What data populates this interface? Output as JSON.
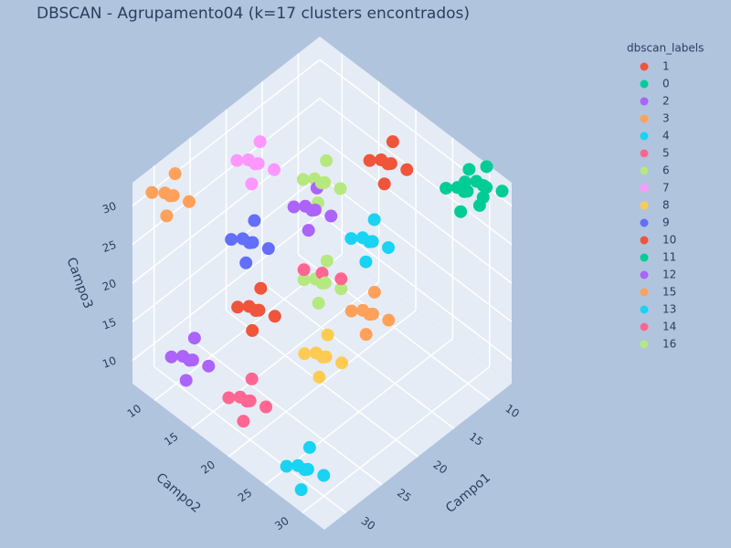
{
  "chart_data": {
    "type": "scatter3d",
    "title": "DBSCAN - Agrupamento04 (k=17 clusters encontrados)",
    "legend_title": "dbscan_labels",
    "x_label": "Campo1",
    "y_label": "Campo2",
    "z_label": "Campo3",
    "xlim": [
      7,
      33
    ],
    "ylim": [
      7,
      33
    ],
    "zlim": [
      7,
      33
    ],
    "xticks": [
      10,
      15,
      20,
      25,
      30
    ],
    "yticks": [
      10,
      15,
      20,
      25,
      30
    ],
    "zticks": [
      10,
      15,
      20,
      25,
      30
    ],
    "grid": true,
    "legend_position": "right",
    "series": [
      {
        "name": "1",
        "color": "#EF553B",
        "x": [
          12.2,
          13.7,
          11.0,
          13.0,
          10.7,
          13.2,
          11.6
        ],
        "y": [
          21.3,
          20.3,
          22.7,
          22.5,
          20.5,
          21.8,
          19.8
        ],
        "z": [
          30.7,
          31.5,
          30.1,
          32.2,
          31.9,
          29.2,
          29.7
        ]
      },
      {
        "name": "0",
        "color": "#00CC96",
        "x": [
          8.3,
          9.8,
          7.1,
          9.1,
          7.0,
          9.3,
          7.7
        ],
        "y": [
          30.4,
          29.4,
          31.8,
          31.6,
          29.6,
          30.9,
          28.9
        ],
        "z": [
          31.7,
          32.5,
          31.1,
          32.9,
          32.6,
          30.2,
          30.7
        ]
      },
      {
        "name": "2",
        "color": "#AB63FA",
        "x": [
          30.4,
          31.9,
          29.2,
          31.2,
          28.9,
          31.4,
          29.8
        ],
        "y": [
          12.2,
          11.2,
          13.6,
          13.4,
          11.4,
          12.7,
          10.7
        ],
        "z": [
          11.9,
          12.7,
          11.3,
          13.4,
          13.1,
          10.4,
          10.9
        ]
      },
      {
        "name": "3",
        "color": "#FFA15A",
        "x": [
          17.4,
          18.9,
          16.2,
          18.2,
          15.9,
          18.4,
          16.8
        ],
        "y": [
          23.9,
          22.9,
          25.3,
          25.1,
          23.1,
          24.4,
          22.4
        ],
        "z": [
          16.9,
          17.7,
          16.3,
          18.4,
          18.1,
          15.4,
          15.9
        ]
      },
      {
        "name": "4",
        "color": "#19D3F3",
        "x": [
          30.4,
          31.9,
          29.2,
          31.2,
          28.9,
          31.4,
          29.8
        ],
        "y": [
          27.8,
          26.8,
          29.2,
          29.0,
          27.0,
          28.3,
          26.3
        ],
        "z": [
          9.1,
          9.9,
          8.5,
          10.6,
          10.3,
          7.6,
          8.1
        ]
      },
      {
        "name": "5",
        "color": "#FF6692",
        "x": [
          20.0,
          21.5,
          18.8
        ],
        "y": [
          20.0,
          19.0,
          21.4
        ],
        "z": [
          21.3,
          22.1,
          20.7
        ]
      },
      {
        "name": "6",
        "color": "#B6E880",
        "x": [
          16.1,
          17.6,
          14.9,
          16.9,
          14.6,
          17.1,
          15.5
        ],
        "y": [
          16.1,
          15.1,
          17.5,
          17.3,
          15.3,
          16.6,
          14.6
        ],
        "z": [
          27.3,
          28.1,
          26.7,
          28.8,
          28.5,
          25.8,
          26.3
        ]
      },
      {
        "name": "7",
        "color": "#FF97FF",
        "x": [
          21.3,
          22.8,
          20.1,
          22.1,
          19.8,
          22.3,
          20.7
        ],
        "y": [
          12.2,
          11.2,
          13.6,
          13.4,
          11.4,
          12.7,
          10.7
        ],
        "z": [
          30.7,
          31.5,
          30.1,
          32.2,
          31.9,
          29.2,
          29.7
        ]
      },
      {
        "name": "8",
        "color": "#FECB52",
        "x": [
          23.9,
          25.4,
          22.7,
          24.7,
          22.4,
          24.9,
          23.3
        ],
        "y": [
          23.9,
          22.9,
          25.3,
          25.1,
          23.1,
          24.4,
          22.4
        ],
        "z": [
          16.1,
          16.9,
          15.5,
          17.6,
          17.3,
          14.6,
          15.1
        ]
      },
      {
        "name": "9",
        "color": "#636EFA",
        "x": [
          22.6,
          24.1,
          21.4,
          23.4,
          21.1,
          23.6,
          22.0
        ],
        "y": [
          12.7,
          11.7,
          14.1,
          13.9,
          11.9,
          13.2,
          11.2
        ],
        "z": [
          21.8,
          22.6,
          21.2,
          23.3,
          23.0,
          20.3,
          20.8
        ]
      },
      {
        "name": "10",
        "color": "#EF553B",
        "x": [
          25.2,
          26.7,
          24.0,
          26.0,
          23.7,
          26.2,
          24.6
        ],
        "y": [
          16.1,
          15.1,
          17.5,
          17.3,
          15.3,
          16.6,
          14.6
        ],
        "z": [
          17.4,
          18.2,
          16.8,
          18.9,
          18.6,
          15.9,
          16.4
        ]
      },
      {
        "name": "11",
        "color": "#00CC96",
        "x": [
          9.6,
          11.1,
          8.4,
          10.4,
          8.1,
          10.6,
          9.0
        ],
        "y": [
          29.1,
          28.1,
          30.5,
          30.3,
          28.3,
          29.6,
          27.6
        ],
        "z": [
          30.9,
          31.7,
          30.3,
          32.4,
          32.1,
          29.4,
          29.9
        ]
      },
      {
        "name": "12",
        "color": "#AB63FA",
        "x": [
          17.4,
          18.9,
          16.2,
          18.2,
          15.9,
          18.4,
          16.8
        ],
        "y": [
          16.1,
          15.1,
          17.5,
          17.3,
          15.3,
          16.6,
          14.6
        ],
        "z": [
          24.7,
          25.5,
          24.1,
          26.2,
          25.9,
          23.2,
          23.7
        ]
      },
      {
        "name": "15",
        "color": "#FFA15A",
        "x": [
          29.1,
          30.6,
          27.9,
          29.9,
          27.6,
          30.1,
          28.5
        ],
        "y": [
          8.3,
          7.3,
          9.7,
          9.5,
          7.5,
          8.8,
          7.0
        ],
        "z": [
          29.4,
          30.2,
          28.8,
          30.9,
          30.6,
          27.9,
          28.4
        ]
      },
      {
        "name": "13",
        "color": "#19D3F3",
        "x": [
          16.1,
          17.6,
          14.9,
          16.9,
          14.6,
          17.1,
          15.5
        ],
        "y": [
          22.6,
          21.6,
          24.0,
          23.8,
          21.8,
          23.1,
          21.1
        ],
        "z": [
          24.4,
          25.2,
          23.8,
          25.9,
          25.6,
          22.9,
          23.4
        ]
      },
      {
        "name": "14",
        "color": "#FF6692",
        "x": [
          29.1,
          30.6,
          27.9,
          29.9,
          27.6,
          30.1,
          28.5
        ],
        "y": [
          18.7,
          17.7,
          20.1,
          19.9,
          17.9,
          19.2,
          17.2
        ],
        "z": [
          10.4,
          11.2,
          9.8,
          11.9,
          11.6,
          8.9,
          9.4
        ]
      },
      {
        "name": "16",
        "color": "#B6E880",
        "x": [
          20.0,
          21.5,
          18.8,
          20.8,
          18.5,
          21.0,
          19.4
        ],
        "y": [
          20.0,
          19.0,
          21.4,
          21.2,
          19.2,
          20.5,
          18.5
        ],
        "z": [
          20.0,
          20.8,
          19.4,
          21.5,
          21.2,
          18.5,
          19.0
        ]
      }
    ]
  }
}
